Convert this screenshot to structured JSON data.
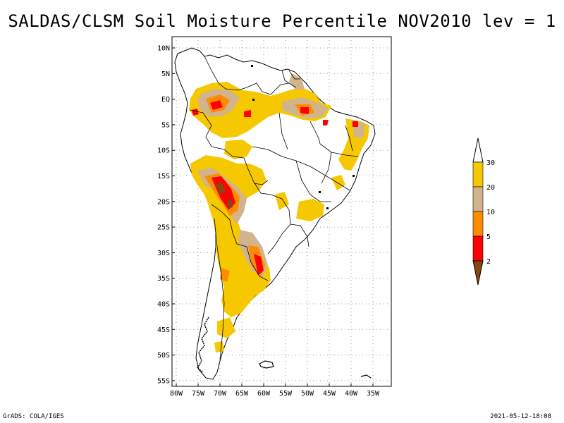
{
  "title": "SALDAS/CLSM Soil Moisture Percentile NOV2010 lev = 1",
  "axes": {
    "lat_labels": [
      "10N",
      "5N",
      "EQ",
      "5S",
      "10S",
      "15S",
      "20S",
      "25S",
      "30S",
      "35S",
      "40S",
      "45S",
      "50S",
      "55S"
    ],
    "lon_labels": [
      "80W",
      "75W",
      "70W",
      "65W",
      "60W",
      "55W",
      "50W",
      "45W",
      "40W",
      "35W"
    ]
  },
  "legend": {
    "labels": [
      "30",
      "20",
      "10",
      "5",
      "2"
    ],
    "colors": {
      "above_30": "#ffffff",
      "c20_30": "#f5c800",
      "c10_20": "#d2b48c",
      "c5_10": "#ff8c00",
      "c2_5": "#ff0000",
      "below_2": "#8b4513"
    }
  },
  "footer": {
    "left": "GrADS: COLA/IGES",
    "right": "2021-05-12-18:08"
  }
}
